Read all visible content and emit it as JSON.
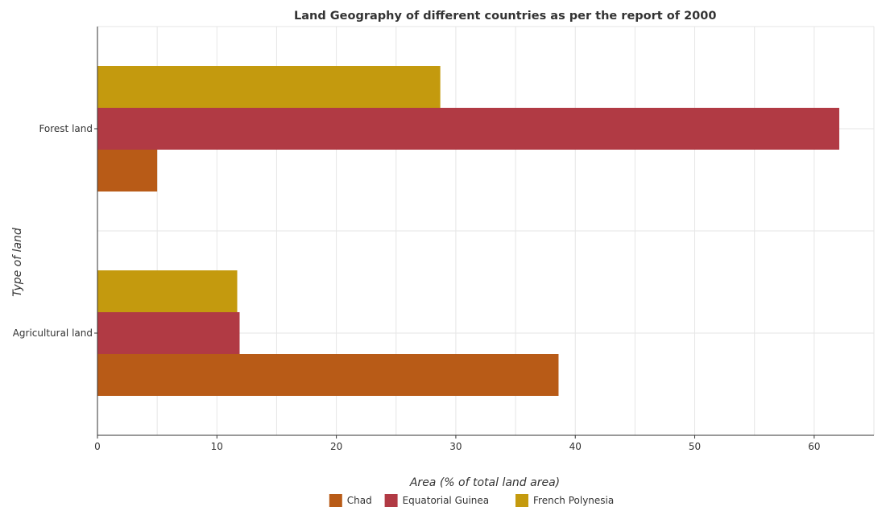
{
  "chart_data": {
    "type": "bar",
    "orientation": "horizontal",
    "title": "Land Geography of different countries as per the report of 2000",
    "xlabel": "Area (% of total land area)",
    "ylabel": "Type of land",
    "categories": [
      "Forest land",
      "Agricultural land"
    ],
    "series": [
      {
        "name": "Chad",
        "color": "#b85b17",
        "values": [
          5.0,
          38.6
        ]
      },
      {
        "name": "Equatorial Guinea",
        "color": "#b13a44",
        "values": [
          62.1,
          11.9
        ]
      },
      {
        "name": "French Polynesia",
        "color": "#c49a0e",
        "values": [
          28.7,
          11.7
        ]
      }
    ],
    "xlim": [
      0,
      65
    ],
    "xticks": [
      0,
      10,
      20,
      30,
      40,
      50,
      60
    ],
    "grid": true,
    "legend": "bottom"
  }
}
